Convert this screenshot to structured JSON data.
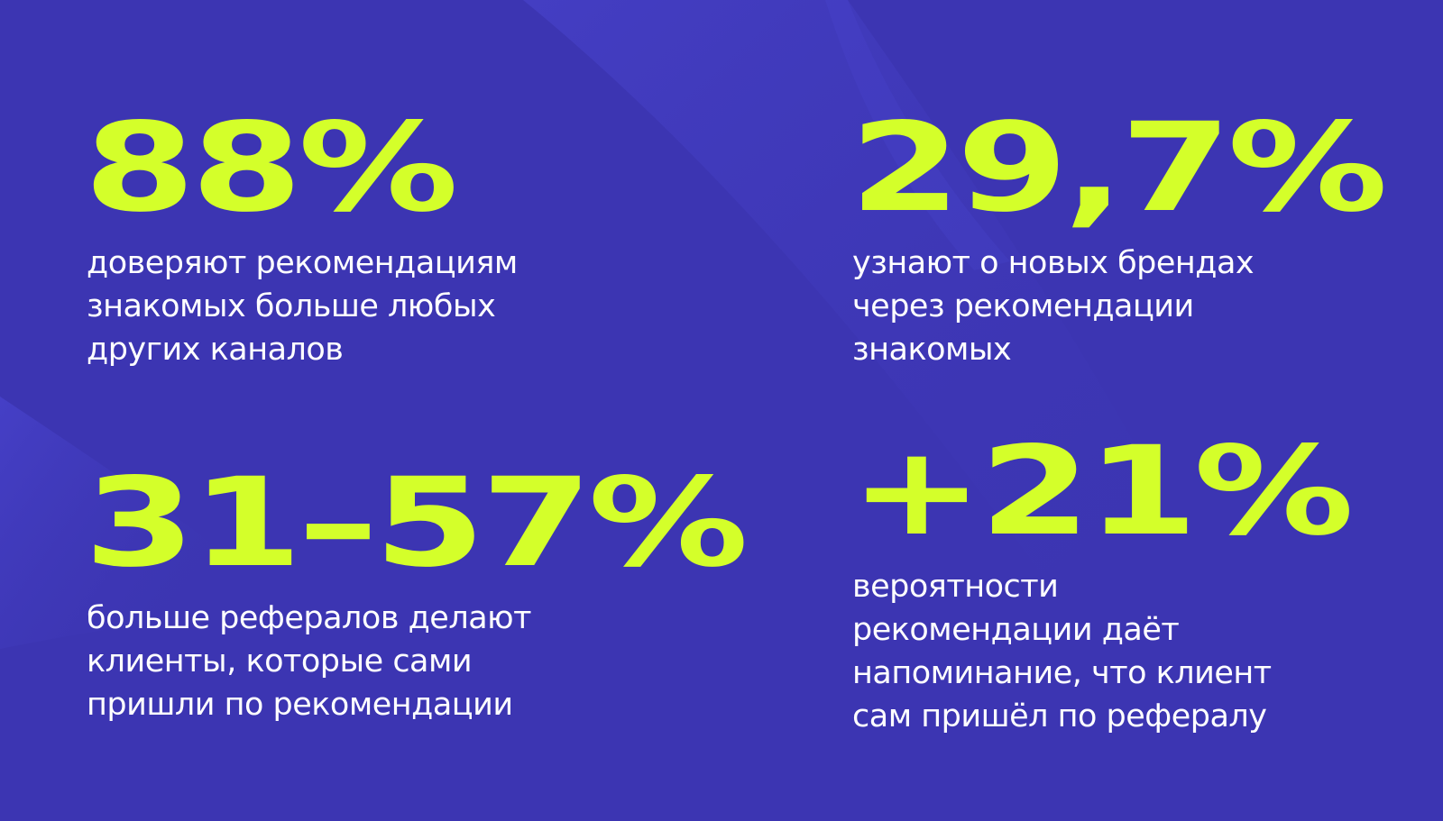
{
  "colors": {
    "background": "#3c35b2",
    "accent": "#d4ff2a",
    "text": "#ffffff"
  },
  "stats": [
    {
      "value": "88%",
      "lines": [
        "доверяют рекомендациям",
        "знакомых больше любых",
        "других каналов"
      ]
    },
    {
      "value": "29,7%",
      "lines": [
        "узнают о новых брендах",
        "через рекомендации",
        "знакомых"
      ]
    },
    {
      "value": "31–57%",
      "lines": [
        "больше рефералов делают",
        "клиенты, которые сами",
        "пришли по рекомендации"
      ]
    },
    {
      "value": "+21%",
      "lines": [
        "вероятности",
        "рекомендации даёт",
        "напоминание, что клиент",
        "сам пришёл по рефералу"
      ]
    }
  ]
}
